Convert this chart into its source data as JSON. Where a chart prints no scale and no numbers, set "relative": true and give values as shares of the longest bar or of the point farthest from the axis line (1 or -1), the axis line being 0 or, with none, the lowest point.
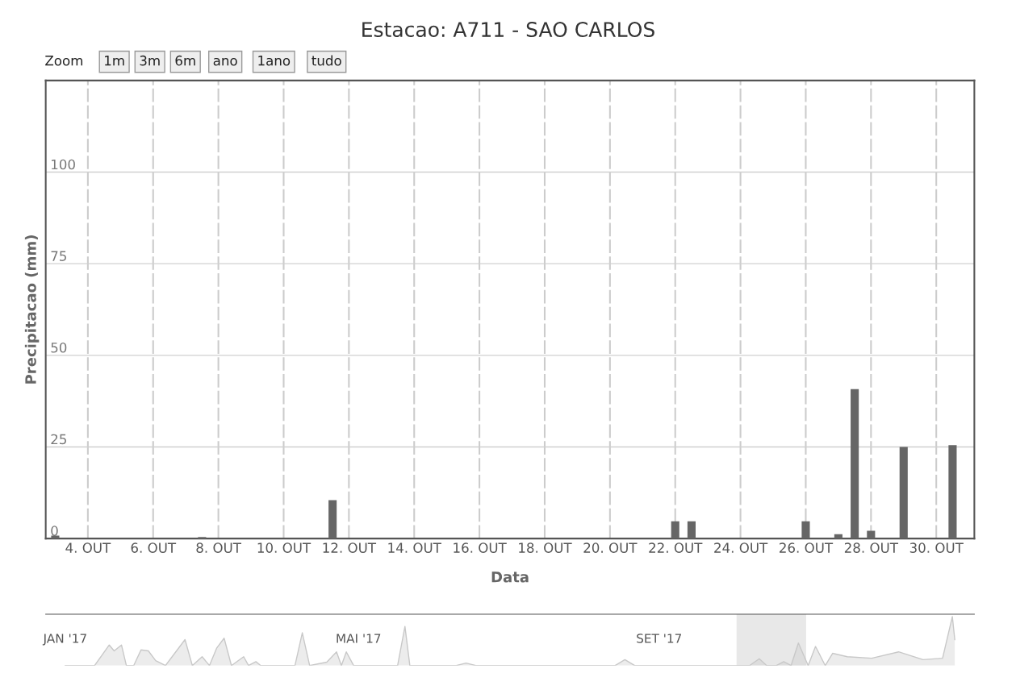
{
  "chart_data": [
    {
      "type": "bar",
      "title": "Estacao: A711 - SAO CARLOS",
      "xlabel": "Data",
      "ylabel": "Precipitacao (mm)",
      "annotations": [
        "Zoom",
        "1m",
        "3m",
        "6m",
        "ano",
        "1ano",
        "tudo"
      ],
      "x": [
        "2017-10-03T00:00",
        "2017-10-07T12:00",
        "2017-10-11T12:00",
        "2017-10-22T00:00",
        "2017-10-22T12:00",
        "2017-10-26T00:00",
        "2017-10-27T00:00",
        "2017-10-27T12:00",
        "2017-10-28T00:00",
        "2017-10-29T00:00",
        "2017-10-30T12:00"
      ],
      "values": [
        0.8,
        0.4,
        10.5,
        4.7,
        4.7,
        4.7,
        1.2,
        40.8,
        2.1,
        25,
        25.5
      ],
      "color": "#666666",
      "xlim": [
        "2017-10-02T17:00",
        "2017-10-31T04:00"
      ],
      "xticks": [
        {
          "value": "2017-10-04",
          "label": "4. OUT"
        },
        {
          "value": "2017-10-06",
          "label": "6. OUT"
        },
        {
          "value": "2017-10-08",
          "label": "8. OUT"
        },
        {
          "value": "2017-10-10",
          "label": "10. OUT"
        },
        {
          "value": "2017-10-12",
          "label": "12. OUT"
        },
        {
          "value": "2017-10-14",
          "label": "14. OUT"
        },
        {
          "value": "2017-10-16",
          "label": "16. OUT"
        },
        {
          "value": "2017-10-18",
          "label": "18. OUT"
        },
        {
          "value": "2017-10-20",
          "label": "20. OUT"
        },
        {
          "value": "2017-10-22",
          "label": "22. OUT"
        },
        {
          "value": "2017-10-24",
          "label": "24. OUT"
        },
        {
          "value": "2017-10-26",
          "label": "26. OUT"
        },
        {
          "value": "2017-10-28",
          "label": "28. OUT"
        },
        {
          "value": "2017-10-30",
          "label": "30. OUT"
        }
      ],
      "ylim": [
        0,
        125
      ],
      "yticks": [
        0,
        25,
        50,
        75,
        100
      ],
      "grid": true
    },
    {
      "type": "area",
      "relative": true,
      "tick_labels": "x",
      "color": "#c8c8c8",
      "x": [
        "2017-01-01",
        "2017-01-13",
        "2017-01-19",
        "2017-01-21",
        "2017-01-24",
        "2017-01-26",
        "2017-01-29",
        "2017-02-01",
        "2017-02-04",
        "2017-02-07",
        "2017-02-11",
        "2017-02-19",
        "2017-02-22",
        "2017-02-26",
        "2017-03-01",
        "2017-03-04",
        "2017-03-07",
        "2017-03-10",
        "2017-03-15",
        "2017-03-17",
        "2017-03-20",
        "2017-03-22",
        "2017-04-05",
        "2017-04-08",
        "2017-04-11",
        "2017-04-18",
        "2017-04-22",
        "2017-04-24",
        "2017-04-26",
        "2017-04-29",
        "2017-05-17",
        "2017-05-20",
        "2017-05-22",
        "2017-06-10",
        "2017-06-14",
        "2017-06-18",
        "2017-08-14",
        "2017-08-18",
        "2017-08-22",
        "2017-10-08",
        "2017-10-12",
        "2017-10-15",
        "2017-10-19",
        "2017-10-22",
        "2017-10-25",
        "2017-10-28",
        "2017-11-01",
        "2017-11-04",
        "2017-11-08",
        "2017-11-11",
        "2017-11-17",
        "2017-11-27",
        "2017-12-08",
        "2017-12-18",
        "2017-12-26",
        "2017-12-30",
        "2017-12-31"
      ],
      "values": [
        0,
        0,
        0.42,
        0.3,
        0.42,
        0,
        0,
        0.32,
        0.3,
        0.1,
        0,
        0.53,
        0,
        0.18,
        0,
        0.36,
        0.56,
        0,
        0.18,
        0,
        0.08,
        0,
        0,
        0.67,
        0,
        0.07,
        0.28,
        0,
        0.28,
        0,
        0,
        0.8,
        0,
        0,
        0.05,
        0,
        0,
        0.12,
        0,
        0,
        0.14,
        0,
        0,
        0.08,
        0,
        0.46,
        0,
        0.39,
        0,
        0.25,
        0.18,
        0.15,
        0.28,
        0.12,
        0.15,
        1.0,
        0.53
      ],
      "xlim": [
        "2016-12-24",
        "2018-01-08"
      ],
      "xticks": [
        {
          "value": "2017-01-01",
          "label": "JAN '17"
        },
        {
          "value": "2017-05-01",
          "label": "MAI '17"
        },
        {
          "value": "2017-09-01",
          "label": "SET '17"
        }
      ],
      "bands": [
        {
          "axis": "x",
          "from": "2017-10-02T17:00",
          "to": "2017-10-31T04:00",
          "color": "#d9d9d9"
        }
      ]
    }
  ]
}
